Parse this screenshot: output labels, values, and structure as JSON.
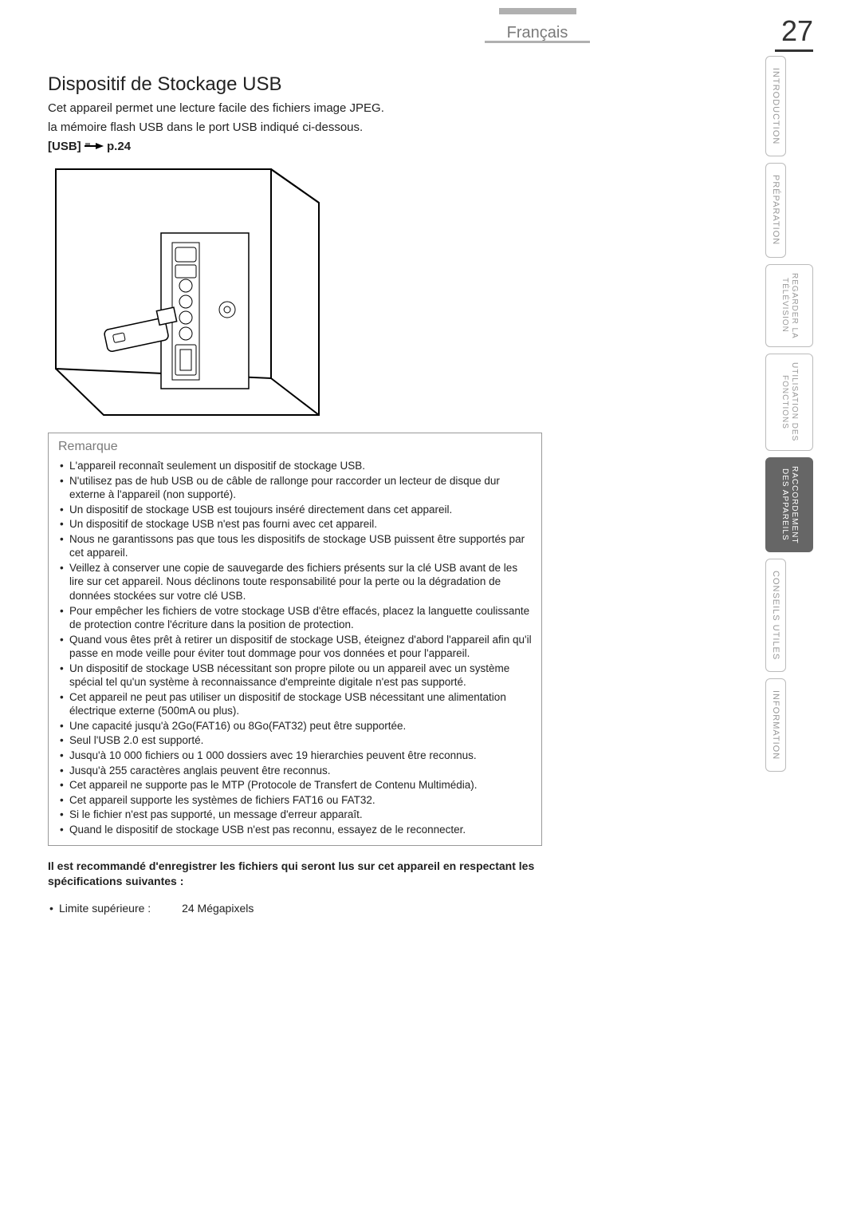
{
  "page_number": "27",
  "language_tab": "Français",
  "heading": "Dispositif de Stockage USB",
  "intro_line1": "Cet appareil permet une lecture facile des fichiers image JPEG.",
  "intro_line2": "la mémoire flash USB dans le port USB indiqué ci-dessous.",
  "reference": {
    "label": "[USB]",
    "page": "p.24"
  },
  "remarque": {
    "title": "Remarque",
    "items": [
      "L'appareil reconnaît seulement un dispositif de stockage USB.",
      "N'utilisez pas de hub USB ou de câble de rallonge pour raccorder un lecteur de disque dur externe à l'appareil (non supporté).",
      "Un dispositif de stockage USB est toujours inséré directement dans cet appareil.",
      "Un dispositif de stockage USB n'est pas fourni avec cet appareil.",
      "Nous ne garantissons pas que tous les dispositifs de stockage USB puissent être supportés par cet appareil.",
      "Veillez à conserver une copie de sauvegarde des fichiers présents sur la clé USB avant de les lire sur cet appareil. Nous déclinons toute responsabilité pour la perte ou la dégradation de données stockées sur votre clé USB.",
      "Pour empêcher les fichiers de votre stockage USB d'être effacés, placez la languette coulissante de protection contre l'écriture dans la position de protection.",
      "Quand vous êtes prêt à retirer un dispositif de stockage USB, éteignez d'abord l'appareil afin qu'il passe en mode veille pour éviter tout dommage pour vos données et pour l'appareil.",
      "Un dispositif de stockage USB nécessitant son propre pilote ou un appareil avec un système spécial tel qu'un système à reconnaissance d'empreinte digitale n'est pas supporté.",
      "Cet appareil ne peut pas utiliser un dispositif de stockage USB nécessitant une alimentation électrique externe (500mA ou plus).",
      "Une capacité jusqu'à 2Go(FAT16) ou 8Go(FAT32) peut être supportée.",
      "Seul l'USB 2.0 est supporté.",
      "Jusqu'à 10 000 fichiers ou 1 000 dossiers avec 19 hierarchies peuvent être reconnus.",
      "Jusqu'à 255 caractères anglais peuvent être reconnus.",
      "Cet appareil ne supporte pas le MTP (Protocole de Transfert de Contenu Multimédia).",
      "Cet appareil supporte les systèmes de fichiers FAT16 ou FAT32.",
      "Si le fichier n'est pas supporté, un message d'erreur apparaît.",
      "Quand le dispositif de stockage USB n'est pas reconnu, essayez de le reconnecter."
    ]
  },
  "recommendation": "Il est recommandé d'enregistrer les fichiers qui seront lus sur cet appareil en respectant les spécifications suivantes :",
  "spec": {
    "label": "Limite supérieure :",
    "value": "24 Mégapixels"
  },
  "side_tabs": [
    {
      "label": "INTRODUCTION",
      "active": false
    },
    {
      "label": "PRÉPARATION",
      "active": false
    },
    {
      "label_line1": "REGARDER LA",
      "label_line2": "TÉLÉVISION",
      "active": false,
      "two_line": true
    },
    {
      "label_line1": "UTILISATION DES",
      "label_line2": "FONCTIONS",
      "active": false,
      "two_line": true
    },
    {
      "label_line1": "RACCORDEMENT",
      "label_line2": "DES APPAREILS",
      "active": true,
      "two_line": true
    },
    {
      "label": "CONSEILS UTILES",
      "active": false
    },
    {
      "label": "INFORMATION",
      "active": false
    }
  ],
  "colors": {
    "text": "#222222",
    "muted": "#7a7a7a",
    "border": "#999999",
    "tab_border": "#bbbbbb",
    "active_bg": "#666666",
    "top_gray": "#b0b0b0"
  }
}
